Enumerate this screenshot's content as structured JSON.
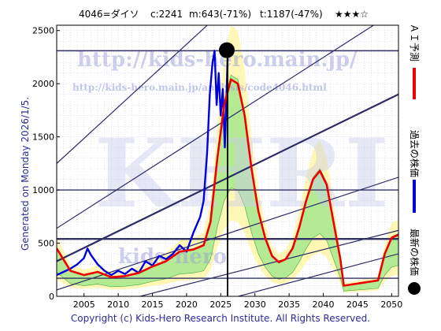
{
  "header": {
    "code_name": "4046=ダイソ",
    "current": "c:2241",
    "max": "m:643(-71%)",
    "target": "t:1187(-47%)",
    "stars": "★★★☆"
  },
  "side_text": "Generated on Monday 2026/1/5.",
  "watermarks": {
    "url_main": "http://kids-hero.main.jp/",
    "url_analysis": "http://kids-hero.main.jp/analysis/code4046.html",
    "logo": "KHRI",
    "url_lower": "kids-hero"
  },
  "footer": "Copyright (c) Kids-Hero Research Institute. All Rights Reserved.",
  "legend": {
    "ai_label": "ＡＩ予測",
    "past_label": "過去の株価",
    "latest_label": "最新の株価",
    "ai_color": "#ee0000",
    "past_color": "#0000dd",
    "latest_color": "#000000"
  },
  "chart_data": {
    "type": "line",
    "xlim": [
      2001,
      2051
    ],
    "ylim": [
      0,
      2550
    ],
    "x_ticks": [
      "2005",
      "2010",
      "2015",
      "2020",
      "2025",
      "2030",
      "2035",
      "2040",
      "2045",
      "2050"
    ],
    "y_ticks": [
      "0",
      "500",
      "1000",
      "1500",
      "2000",
      "2500"
    ],
    "horizontal_levels": [
      170,
      540,
      1000,
      2310
    ],
    "latest_point": {
      "x": 2026.0,
      "y": 2241
    },
    "series": [
      {
        "color": "#0000dd",
        "x": [
          2001,
          2002,
          2003,
          2004,
          2005,
          2005.5,
          2006,
          2007,
          2008,
          2009,
          2010,
          2011,
          2012,
          2013,
          2014,
          2015,
          2016,
          2017,
          2018,
          2019,
          2020,
          2021,
          2022,
          2022.5,
          2023,
          2023.4,
          2023.8,
          2024.1,
          2024.4,
          2024.7,
          2025.0,
          2025.3,
          2025.6,
          2025.9,
          2026.0
        ],
        "y": [
          200,
          230,
          260,
          300,
          360,
          450,
          390,
          300,
          240,
          200,
          240,
          210,
          260,
          220,
          330,
          290,
          380,
          350,
          400,
          480,
          420,
          600,
          750,
          900,
          1350,
          1900,
          2200,
          2310,
          1800,
          2100,
          1700,
          1950,
          1400,
          2000,
          2241
        ]
      },
      {
        "color": "#ee0000",
        "x": [
          2001,
          2003,
          2005,
          2007,
          2009,
          2011,
          2013,
          2015,
          2017,
          2019,
          2021,
          2022.5,
          2023.5,
          2024.5,
          2025.5,
          2026.5,
          2027.5,
          2028.5,
          2029.5,
          2030.5,
          2031.5,
          2032.5,
          2033.5,
          2034.5,
          2035.5,
          2036.5,
          2037.5,
          2038.5,
          2039.5,
          2040.5,
          2041.5,
          2042.5,
          2043,
          2048,
          2049,
          2050,
          2051
        ],
        "y": [
          450,
          240,
          200,
          230,
          180,
          190,
          220,
          280,
          330,
          420,
          440,
          480,
          700,
          1300,
          1800,
          2040,
          2000,
          1700,
          1200,
          800,
          550,
          380,
          320,
          350,
          450,
          650,
          900,
          1100,
          1180,
          1050,
          700,
          350,
          100,
          150,
          400,
          550,
          580
        ]
      }
    ]
  }
}
